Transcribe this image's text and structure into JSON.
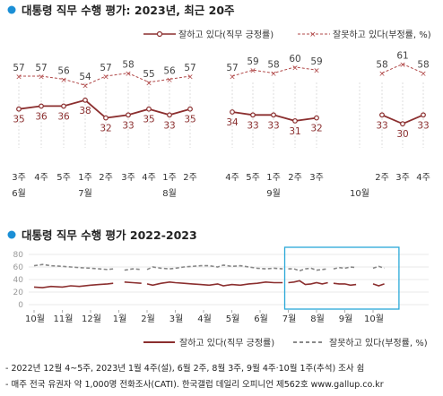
{
  "chart_data": [
    {
      "type": "line",
      "title": "대통령 직무 수행 평가: 2023년, 최근 20주",
      "x": [
        "6월 3주",
        "6월 4주",
        "6월 5주",
        "7월 1주",
        "7월 2주",
        "7월 3주",
        "7월 4주",
        "8월 1주",
        "8월 2주",
        "8월 4주",
        "8월 5주",
        "9월 1주",
        "9월 2주",
        "9월 3주",
        "10월 1주",
        "10월 2주",
        "10월 3주",
        "10월 4주"
      ],
      "tick_weeks": [
        "3주",
        "4주",
        "5주",
        "1주",
        "2주",
        "3주",
        "4주",
        "1주",
        "2주",
        "4주",
        "5주",
        "1주",
        "2주",
        "3주",
        "",
        "2주",
        "3주",
        "4주"
      ],
      "months": [
        {
          "label": "6월",
          "at": 0
        },
        {
          "label": "7월",
          "at": 3
        },
        {
          "label": "8월",
          "at": 7
        },
        {
          "label": "9월",
          "at": 11
        },
        {
          "label": "10월",
          "at": 14
        }
      ],
      "series": [
        {
          "name": "잘하고 있다(직무 긍정률)",
          "color": "#8b2f2f",
          "segments": [
            [
              0,
              8
            ],
            [
              9,
              13
            ],
            [
              15,
              17
            ]
          ],
          "values": [
            35,
            36,
            36,
            38,
            32,
            33,
            35,
            33,
            35,
            34,
            33,
            33,
            31,
            32,
            null,
            33,
            30,
            33
          ]
        },
        {
          "name": "잘못하고 있다(부정률, %)",
          "color": "#b04848",
          "segments": [
            [
              0,
              8
            ],
            [
              9,
              13
            ],
            [
              15,
              17
            ]
          ],
          "values": [
            57,
            57,
            56,
            54,
            57,
            58,
            55,
            56,
            57,
            57,
            59,
            58,
            60,
            59,
            null,
            58,
            61,
            58
          ]
        }
      ]
    },
    {
      "type": "line",
      "title": "대통령 직무 수행 평가 2022-2023",
      "ylim": [
        0,
        80
      ],
      "yticks": [
        0,
        20,
        40,
        60,
        80
      ],
      "months": [
        "10월",
        "11월",
        "12월",
        "1월",
        "2월",
        "3월",
        "4월",
        "5월",
        "6월",
        "7월",
        "8월",
        "9월",
        "10월"
      ],
      "series": [
        {
          "name": "잘하고 있다(직무 긍정률)",
          "color": "#8b2f2f",
          "segments": [
            [
              [
                0,
                28
              ],
              [
                0.3,
                27
              ],
              [
                0.6,
                29
              ],
              [
                1.0,
                28
              ],
              [
                1.3,
                30
              ],
              [
                1.6,
                29
              ],
              [
                2.0,
                31
              ],
              [
                2.3,
                32
              ],
              [
                2.6,
                33
              ],
              [
                2.8,
                34
              ]
            ],
            [
              [
                3.2,
                36
              ],
              [
                3.5,
                35
              ],
              [
                3.8,
                34
              ]
            ],
            [
              [
                4.0,
                33
              ],
              [
                4.2,
                31
              ],
              [
                4.5,
                34
              ],
              [
                4.8,
                36
              ],
              [
                5.0,
                35
              ],
              [
                5.3,
                34
              ],
              [
                5.6,
                33
              ],
              [
                5.9,
                32
              ],
              [
                6.2,
                31
              ],
              [
                6.5,
                33
              ],
              [
                6.7,
                30
              ],
              [
                7.0,
                32
              ],
              [
                7.3,
                31
              ],
              [
                7.6,
                33
              ],
              [
                7.9,
                34
              ],
              [
                8.2,
                36
              ],
              [
                8.5,
                35
              ],
              [
                8.8,
                35
              ]
            ],
            [
              [
                9.0,
                35
              ],
              [
                9.2,
                36
              ],
              [
                9.4,
                38
              ],
              [
                9.6,
                32
              ],
              [
                9.8,
                33
              ],
              [
                10.0,
                35
              ],
              [
                10.2,
                33
              ],
              [
                10.4,
                35
              ]
            ],
            [
              [
                10.6,
                34
              ],
              [
                10.8,
                33
              ],
              [
                11.0,
                33
              ],
              [
                11.2,
                31
              ],
              [
                11.4,
                32
              ]
            ],
            [
              [
                12.0,
                33
              ],
              [
                12.2,
                30
              ],
              [
                12.4,
                33
              ]
            ]
          ]
        },
        {
          "name": "잘못하고 있다(부정률, %)",
          "color": "#888888",
          "segments": [
            [
              [
                0,
                62
              ],
              [
                0.3,
                64
              ],
              [
                0.6,
                62
              ],
              [
                1.0,
                61
              ],
              [
                1.3,
                60
              ],
              [
                1.6,
                59
              ],
              [
                2.0,
                58
              ],
              [
                2.3,
                57
              ],
              [
                2.6,
                56
              ],
              [
                2.8,
                57
              ]
            ],
            [
              [
                3.2,
                55
              ],
              [
                3.5,
                57
              ],
              [
                3.8,
                56
              ]
            ],
            [
              [
                4.0,
                56
              ],
              [
                4.2,
                60
              ],
              [
                4.5,
                58
              ],
              [
                4.8,
                57
              ],
              [
                5.0,
                58
              ],
              [
                5.3,
                60
              ],
              [
                5.6,
                61
              ],
              [
                5.9,
                62
              ],
              [
                6.2,
                62
              ],
              [
                6.5,
                60
              ],
              [
                6.7,
                63
              ],
              [
                7.0,
                61
              ],
              [
                7.3,
                62
              ],
              [
                7.6,
                60
              ],
              [
                7.9,
                58
              ],
              [
                8.2,
                57
              ],
              [
                8.5,
                58
              ],
              [
                8.8,
                57
              ]
            ],
            [
              [
                9.0,
                57
              ],
              [
                9.2,
                57
              ],
              [
                9.4,
                54
              ],
              [
                9.6,
                57
              ],
              [
                9.8,
                58
              ],
              [
                10.0,
                55
              ],
              [
                10.2,
                56
              ],
              [
                10.4,
                57
              ]
            ],
            [
              [
                10.6,
                57
              ],
              [
                10.8,
                59
              ],
              [
                11.0,
                58
              ],
              [
                11.2,
                60
              ],
              [
                11.4,
                59
              ]
            ],
            [
              [
                12.0,
                58
              ],
              [
                12.2,
                61
              ],
              [
                12.4,
                58
              ]
            ]
          ]
        }
      ],
      "highlight": {
        "from": 9.0,
        "to": 12.6
      }
    }
  ],
  "legend": {
    "approve": "잘하고 있다(직무 긍정률)",
    "disapprove": "잘못하고 있다(부정률, %)"
  },
  "notes": [
    "- 2022년 12월 4~5주, 2023년 1월 4주(설), 6월 2주, 8월 3주, 9월 4주·10월 1주(추석) 조사 쉼",
    "- 매주 전국 유권자 약 1,000명 전화조사(CATI). 한국갤럽 데일리 오피니언 제562호 www.gallup.co.kr"
  ],
  "colors": {
    "approve": "#8b2f2f",
    "disapprove": "#b04848",
    "disapprove_gray": "#888888",
    "bullet": "#1b8fd6",
    "highlight": "#2aa8d8"
  }
}
